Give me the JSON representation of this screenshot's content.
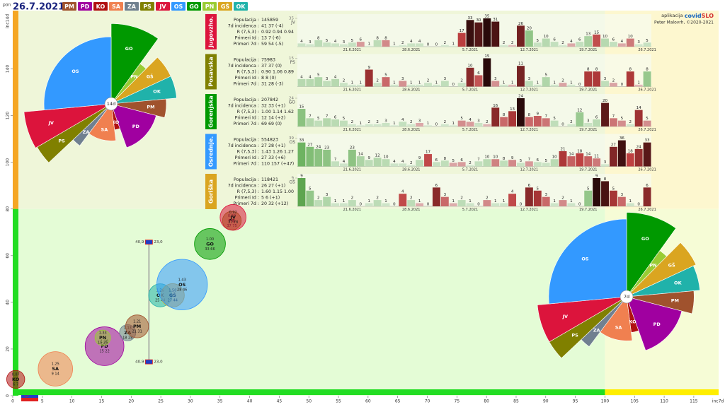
{
  "header": {
    "day": "pon",
    "date": "26.7.2021",
    "legend": [
      {
        "code": "PM",
        "color": "#a0522d"
      },
      {
        "code": "PD",
        "color": "#a000a0"
      },
      {
        "code": "KO",
        "color": "#b01010"
      },
      {
        "code": "SA",
        "color": "#f08050"
      },
      {
        "code": "ZA",
        "color": "#708090"
      },
      {
        "code": "PS",
        "color": "#808000"
      },
      {
        "code": "JV",
        "color": "#dc143c"
      },
      {
        "code": "OS",
        "color": "#3399ff"
      },
      {
        "code": "GO",
        "color": "#009900"
      },
      {
        "code": "PN",
        "color": "#99cc33"
      },
      {
        "code": "GŠ",
        "color": "#daa520"
      },
      {
        "code": "OK",
        "color": "#20b2aa"
      }
    ]
  },
  "credit": {
    "prefix": "aplikacija",
    "app": [
      "covid",
      "SLO"
    ],
    "author": "Peter Malovrh, ©2020-2021"
  },
  "chart_data": [
    {
      "type": "bubble",
      "xlabel": "inc7d",
      "ylabel": "inc14d",
      "xlim": [
        0,
        118
      ],
      "ylim": [
        0,
        165
      ],
      "xticks": [
        0,
        5,
        10,
        15,
        20,
        25,
        30,
        35,
        40,
        45,
        50,
        55,
        60,
        65,
        70,
        75,
        80,
        85,
        90,
        95,
        100,
        105,
        110,
        115
      ],
      "yticks": [
        0,
        20,
        40,
        60,
        80,
        100,
        120,
        140
      ],
      "zones_x": [
        100
      ],
      "zones_y": [
        80
      ],
      "names": [
        "KO",
        "SA",
        "PD",
        "PN",
        "ZA",
        "PM",
        "OK",
        "GŠ",
        "OS",
        "GO",
        "PS",
        "JV"
      ],
      "colors": [
        "#b01010",
        "#f08050",
        "#a000a0",
        "#99cc33",
        "#708090",
        "#a0522d",
        "#20b2aa",
        "#daa520",
        "#3399ff",
        "#009900",
        "#808000",
        "#dc143c"
      ],
      "x": [
        0.5,
        7.2,
        15.5,
        15.2,
        19.4,
        21,
        24.9,
        27,
        28.6,
        33.3,
        37,
        37.2
      ],
      "values": [
        7,
        11.5,
        21.2,
        24.8,
        27,
        29.7,
        43,
        43,
        47.6,
        65,
        75,
        76.4
      ],
      "sizes": [
        70550,
        257425,
        325994,
        52818,
        57059,
        114238,
        115613,
        118421,
        554823,
        207842,
        75983,
        145859
      ],
      "ratios": [
        "0.87",
        "1.25",
        "1.28",
        "1.33",
        "1.13",
        "1.21",
        "1.26",
        "1.50",
        "1.43",
        "1.00",
        "0.99",
        "0.92"
      ],
      "pair_labels": [
        "6 7",
        "9 14",
        "15 22",
        "15 25",
        "18 28",
        "21 31",
        "25 44",
        "27 44",
        "28 46",
        "33 66",
        "37 75",
        "37 78"
      ],
      "national": {
        "x": 23.0,
        "range": [
          14.5,
          65.8
        ],
        "labels": [
          "40,9",
          "23,0"
        ]
      }
    },
    {
      "type": "polar",
      "title": "14d",
      "categories": [
        "GO",
        "PN",
        "GŠ",
        "OK",
        "PM",
        "PD",
        "KO",
        "SA",
        "ZA",
        "PS",
        "JV",
        "OS"
      ],
      "colors": [
        "#009900",
        "#99cc33",
        "#daa520",
        "#20b2aa",
        "#a0522d",
        "#a000a0",
        "#b01010",
        "#f08050",
        "#708090",
        "#808000",
        "#dc143c",
        "#3399ff"
      ],
      "values": [
        66,
        25,
        44,
        44,
        31,
        22,
        7,
        14,
        28,
        75,
        78,
        46
      ],
      "weights": [
        207842,
        52818,
        118421,
        115613,
        114238,
        325994,
        70550,
        257425,
        57059,
        75983,
        145859,
        554823
      ]
    },
    {
      "type": "polar",
      "title": "7d",
      "categories": [
        "GO",
        "PN",
        "GŠ",
        "OK",
        "PM",
        "PD",
        "KO",
        "SA",
        "ZA",
        "PS",
        "JV",
        "OS"
      ],
      "colors": [
        "#009900",
        "#99cc33",
        "#daa520",
        "#20b2aa",
        "#a0522d",
        "#a000a0",
        "#b01010",
        "#f08050",
        "#708090",
        "#808000",
        "#dc143c",
        "#3399ff"
      ],
      "values": [
        33,
        15,
        27,
        25,
        21,
        15,
        6,
        9,
        18,
        37,
        37,
        28
      ],
      "weights": [
        207842,
        52818,
        118421,
        115613,
        114238,
        325994,
        70550,
        257425,
        57059,
        75983,
        145859,
        554823
      ]
    },
    {
      "type": "bar",
      "region": "Jugovzho.",
      "label": "JV",
      "color": "#dc143c",
      "ylim": [
        0,
        35
      ],
      "yticks": [
        35
      ],
      "stats": [
        {
          "label": "Populacija :",
          "value": "145859"
        },
        {
          "label": "7d incidenca :",
          "value": "41 37 (-4)"
        },
        {
          "label": "R (7,5,3) :",
          "value": "0.92 0.94 0.94"
        },
        {
          "label": "Primeri Id :",
          "value": "13 7 (-6)"
        },
        {
          "label": "Primeri 7d :",
          "value": "59 54 (-5)"
        }
      ],
      "categories": [
        null,
        null,
        null,
        null,
        null,
        null,
        "21.6.2021",
        null,
        null,
        null,
        null,
        null,
        null,
        "28.6.2021",
        null,
        null,
        null,
        null,
        null,
        null,
        "5.7.2021",
        null,
        null,
        null,
        null,
        null,
        null,
        "12.7.2021",
        null,
        null,
        null,
        null,
        null,
        null,
        "19.7.2021",
        null,
        null,
        null,
        null,
        null,
        null,
        "26.7.2021"
      ],
      "values": [
        4,
        3,
        8,
        5,
        4,
        3,
        5,
        6,
        1,
        8,
        8,
        1,
        2,
        4,
        4,
        0,
        0,
        2,
        1,
        17,
        33,
        30,
        35,
        31,
        2,
        2,
        26,
        20,
        5,
        10,
        6,
        2,
        4,
        6,
        13,
        15,
        10,
        6,
        4,
        10,
        3,
        5
      ]
    },
    {
      "type": "bar",
      "region": "Posavska",
      "label": "PS",
      "color": "#808000",
      "ylim": [
        0,
        15
      ],
      "yticks": [
        15
      ],
      "stats": [
        {
          "label": "Populacija :",
          "value": "75983"
        },
        {
          "label": "7d incidenca :",
          "value": "37 37 (0)"
        },
        {
          "label": "R (7,5,3) :",
          "value": "0.90 1.06 0.89"
        },
        {
          "label": "Primeri Id :",
          "value": "8 8 (0)"
        },
        {
          "label": "Primeri 7d :",
          "value": "31 28 (-3)"
        }
      ],
      "categories": [
        null,
        null,
        null,
        null,
        null,
        null,
        "21.6.2021",
        null,
        null,
        null,
        null,
        null,
        null,
        "28.6.2021",
        null,
        null,
        null,
        null,
        null,
        null,
        "5.7.2021",
        null,
        null,
        null,
        null,
        null,
        null,
        "12.7.2021",
        null,
        null,
        null,
        null,
        null,
        null,
        "19.7.2021",
        null,
        null,
        null,
        null,
        null,
        null,
        "26.7.2021"
      ],
      "values": [
        4,
        4,
        5,
        3,
        4,
        2,
        1,
        1,
        9,
        2,
        5,
        1,
        3,
        1,
        1,
        2,
        1,
        3,
        0,
        2,
        10,
        6,
        15,
        3,
        1,
        1,
        11,
        3,
        1,
        5,
        1,
        2,
        1,
        0,
        8,
        8,
        3,
        2,
        0,
        8,
        1,
        8
      ]
    },
    {
      "type": "bar",
      "region": "Gorenjska",
      "label": "GO",
      "color": "#009900",
      "ylim": [
        0,
        24
      ],
      "yticks": [
        24
      ],
      "stats": [
        {
          "label": "Populacija :",
          "value": "207842"
        },
        {
          "label": "7d incidenca :",
          "value": "32 33 (+1)"
        },
        {
          "label": "R (7,5,3) :",
          "value": "1.00 1.14 1.62"
        },
        {
          "label": "Primeri Id :",
          "value": "12 14 (+2)"
        },
        {
          "label": "Primeri 7d :",
          "value": "69 69 (0)"
        }
      ],
      "categories": [
        null,
        null,
        null,
        null,
        null,
        null,
        "21.6.2021",
        null,
        null,
        null,
        null,
        null,
        null,
        "28.6.2021",
        null,
        null,
        null,
        null,
        null,
        null,
        "5.7.2021",
        null,
        null,
        null,
        null,
        null,
        null,
        "12.7.2021",
        null,
        null,
        null,
        null,
        null,
        null,
        "19.7.2021",
        null,
        null,
        null,
        null,
        null,
        null,
        "26.7.2021"
      ],
      "values": [
        15,
        7,
        5,
        7,
        6,
        5,
        2,
        1,
        2,
        2,
        3,
        1,
        4,
        2,
        3,
        1,
        0,
        2,
        1,
        5,
        4,
        3,
        2,
        16,
        8,
        13,
        24,
        8,
        9,
        7,
        5,
        0,
        2,
        12,
        3,
        6,
        20,
        7,
        5,
        2,
        14,
        5
      ]
    },
    {
      "type": "bar",
      "region": "Osrednje.",
      "label": "OS",
      "color": "#3399ff",
      "ylim": [
        0,
        39
      ],
      "yticks": [
        39
      ],
      "stats": [
        {
          "label": "Populacija :",
          "value": "554823"
        },
        {
          "label": "7d incidenca :",
          "value": "27 28 (+1)"
        },
        {
          "label": "R (7,5,3) :",
          "value": "1.43 1.26 1.27"
        },
        {
          "label": "Primeri Id :",
          "value": "27 33 (+6)"
        },
        {
          "label": "Primeri 7d :",
          "value": "110 157 (+47)"
        }
      ],
      "categories": [
        null,
        null,
        null,
        null,
        null,
        null,
        "21.6.2021",
        null,
        null,
        null,
        null,
        null,
        null,
        "28.6.2021",
        null,
        null,
        null,
        null,
        null,
        null,
        "5.7.2021",
        null,
        null,
        null,
        null,
        null,
        null,
        "12.7.2021",
        null,
        null,
        null,
        null,
        null,
        null,
        "19.7.2021",
        null,
        null,
        null,
        null,
        null,
        null,
        "26.7.2021"
      ],
      "values": [
        33,
        27,
        24,
        23,
        7,
        4,
        23,
        14,
        9,
        12,
        10,
        4,
        4,
        2,
        9,
        17,
        6,
        8,
        5,
        6,
        2,
        7,
        10,
        10,
        8,
        9,
        5,
        7,
        6,
        5,
        10,
        21,
        14,
        18,
        14,
        11,
        3,
        27,
        36,
        18,
        24,
        33
      ]
    },
    {
      "type": "bar",
      "region": "Goriška",
      "label": "GŠ",
      "color": "#daa520",
      "ylim": [
        0,
        9
      ],
      "yticks": [
        9
      ],
      "stats": [
        {
          "label": "Populacija :",
          "value": "118421"
        },
        {
          "label": "7d incidenca :",
          "value": "26 27 (+1)"
        },
        {
          "label": "R (7,5,3) :",
          "value": "1.60 1.15 1.00"
        },
        {
          "label": "Primeri Id :",
          "value": "5 6 (+1)"
        },
        {
          "label": "Primeri 7d :",
          "value": "20 32 (+12)"
        }
      ],
      "categories": [
        null,
        null,
        null,
        null,
        null,
        null,
        "21.6.2021",
        null,
        null,
        null,
        null,
        null,
        null,
        "28.6.2021",
        null,
        null,
        null,
        null,
        null,
        null,
        "5.7.2021",
        null,
        null,
        null,
        null,
        null,
        null,
        "12.7.2021",
        null,
        null,
        null,
        null,
        null,
        null,
        "19.7.2021",
        null,
        null,
        null,
        null,
        null,
        null,
        "26.7.2021"
      ],
      "values": [
        9,
        5,
        2,
        3,
        1,
        1,
        2,
        0,
        1,
        2,
        1,
        0,
        4,
        2,
        1,
        0,
        6,
        3,
        1,
        2,
        1,
        0,
        2,
        1,
        1,
        4,
        0,
        6,
        5,
        3,
        1,
        2,
        1,
        0,
        5,
        9,
        8,
        5,
        3,
        1,
        0,
        6
      ]
    }
  ]
}
